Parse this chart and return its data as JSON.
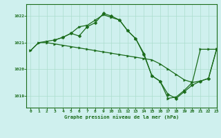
{
  "title": "Graphe pression niveau de la mer (hPa)",
  "bg_color": "#cff0ee",
  "grid_color": "#aaddcc",
  "line_color": "#1a6b1a",
  "xlim": [
    -0.5,
    23
  ],
  "ylim": [
    1018.55,
    1022.45
  ],
  "yticks": [
    1019,
    1020,
    1021,
    1022
  ],
  "xticks": [
    0,
    1,
    2,
    3,
    4,
    5,
    6,
    7,
    8,
    9,
    10,
    11,
    12,
    13,
    14,
    15,
    16,
    17,
    18,
    19,
    20,
    21,
    22,
    23
  ],
  "series1_x": [
    0,
    1,
    2,
    3,
    4,
    5,
    6,
    7,
    8,
    9,
    10,
    11,
    12,
    13,
    14,
    15,
    16,
    17,
    18,
    19,
    20,
    21,
    22,
    23
  ],
  "series1_y": [
    1020.7,
    1021.0,
    1021.05,
    1021.1,
    1021.2,
    1021.35,
    1021.6,
    1021.65,
    1021.85,
    1022.05,
    1021.95,
    1021.85,
    1021.45,
    1021.15,
    1020.6,
    1019.75,
    1019.55,
    1018.9,
    1018.95,
    1019.2,
    1019.5,
    1020.75,
    1020.75,
    1020.75
  ],
  "series2_x": [
    0,
    1,
    2,
    3,
    4,
    5,
    6,
    7,
    8,
    9,
    10,
    11,
    12,
    13,
    14,
    15,
    16,
    17,
    18,
    19,
    20,
    21,
    22,
    23
  ],
  "series2_y": [
    1020.7,
    1021.0,
    1021.0,
    1020.95,
    1020.9,
    1020.85,
    1020.8,
    1020.75,
    1020.7,
    1020.65,
    1020.6,
    1020.55,
    1020.5,
    1020.45,
    1020.4,
    1020.35,
    1020.2,
    1020.0,
    1019.8,
    1019.6,
    1019.5,
    1019.55,
    1019.65,
    1020.75
  ],
  "series3_x": [
    3,
    4,
    5,
    6,
    7,
    8,
    9,
    10,
    11,
    12,
    13,
    14,
    15,
    16,
    17,
    18,
    19,
    20,
    21,
    22,
    23
  ],
  "series3_y": [
    1021.1,
    1021.2,
    1021.35,
    1021.25,
    1021.6,
    1021.75,
    1022.1,
    1022.0,
    1021.85,
    1021.45,
    1021.15,
    1020.55,
    1019.75,
    1019.55,
    1019.05,
    1018.9,
    1019.15,
    1019.4,
    1019.55,
    1019.65,
    1020.75
  ]
}
